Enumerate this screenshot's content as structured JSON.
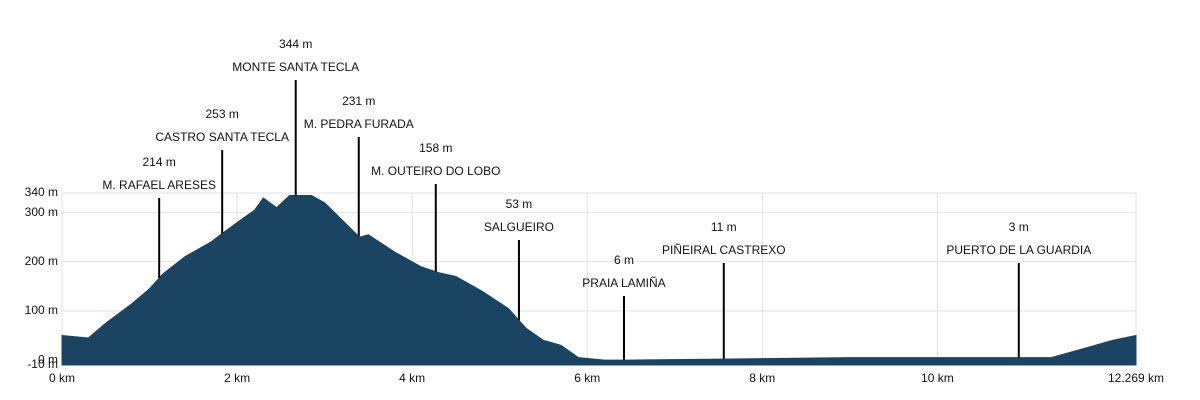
{
  "chart_data": {
    "type": "area",
    "x": [
      0,
      0.3,
      0.5,
      0.8,
      1.0,
      1.15,
      1.4,
      1.7,
      1.85,
      2.0,
      2.2,
      2.3,
      2.45,
      2.6,
      2.85,
      3.0,
      3.2,
      3.4,
      3.5,
      3.8,
      4.1,
      4.3,
      4.5,
      4.8,
      5.1,
      5.3,
      5.5,
      5.7,
      5.9,
      6.2,
      6.5,
      7.5,
      9,
      10,
      11,
      11.3,
      11.7,
      12.0,
      12.269
    ],
    "values": [
      50,
      45,
      75,
      115,
      145,
      175,
      210,
      240,
      260,
      280,
      305,
      330,
      310,
      335,
      335,
      320,
      285,
      250,
      255,
      220,
      190,
      178,
      170,
      140,
      105,
      65,
      40,
      30,
      5,
      0,
      0,
      2,
      5,
      5,
      5,
      5,
      25,
      40,
      50
    ],
    "color": "#1b4462",
    "xlim": [
      0,
      12.269
    ],
    "xticks": [
      {
        "value": 0,
        "label": "0 km"
      },
      {
        "value": 2,
        "label": "2 km"
      },
      {
        "value": 4,
        "label": "4 km"
      },
      {
        "value": 6,
        "label": "6 km"
      },
      {
        "value": 8,
        "label": "8 km"
      },
      {
        "value": 10,
        "label": "10 km"
      },
      {
        "value": 12.269,
        "label": "12.269 km"
      }
    ],
    "ylim": [
      -10,
      340
    ],
    "yticks": [
      {
        "value": -10,
        "label": "-10 m"
      },
      {
        "value": 0,
        "label": "0 m"
      },
      {
        "value": 100,
        "label": "100 m"
      },
      {
        "value": 200,
        "label": "200 m"
      },
      {
        "value": 300,
        "label": "300 m"
      },
      {
        "value": 340,
        "label": "340 m"
      }
    ],
    "grid": true,
    "markers": {
      "x": [
        1.11,
        1.83,
        2.67,
        3.39,
        4.27,
        5.22,
        6.42,
        7.56,
        10.93
      ],
      "values": [
        214,
        253,
        344,
        231,
        158,
        53,
        6,
        11,
        3
      ],
      "value_labels": [
        "214 m",
        "253 m",
        "344 m",
        "231 m",
        "158 m",
        "53 m",
        "6 m",
        "11 m",
        "3 m"
      ],
      "names": [
        "M. RAFAEL ARESES",
        "CASTRO SANTA TECLA",
        "MONTE SANTA TECLA",
        "M. PEDRA FURADA",
        "M. OUTEIRO DO LOBO",
        "SALGUEIRO",
        "PRAIA LAMIÑA",
        "PIÑEIRAL CASTREXO",
        "PUERTO DE LA GUARDIA"
      ]
    }
  }
}
